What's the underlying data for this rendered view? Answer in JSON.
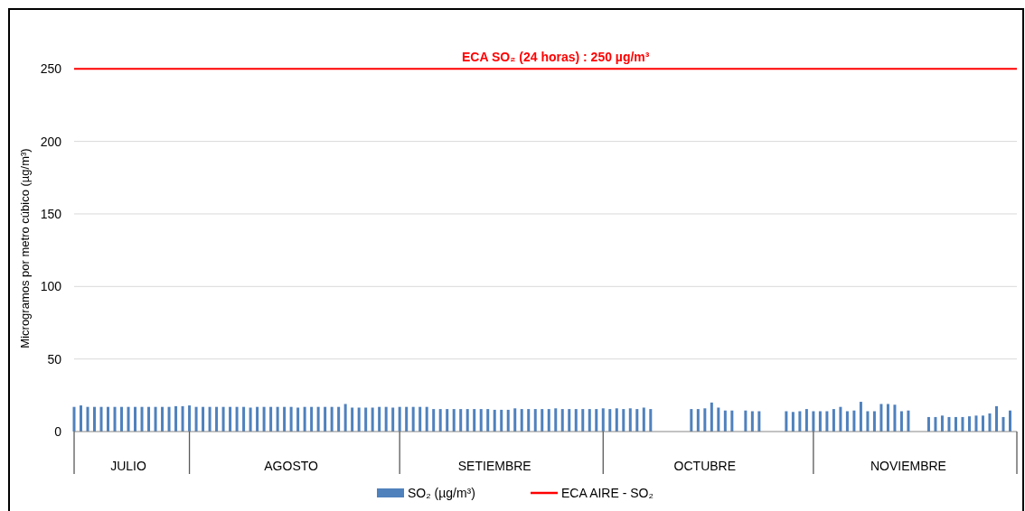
{
  "chart_data": {
    "type": "bar",
    "ylabel": "Microgramos por metro cúbico (µg/m³)",
    "xlim": [
      "--07-15",
      "--12-01"
    ],
    "xticks": [
      {
        "value": "--07-15",
        "label": null
      },
      {
        "value": "--07-23",
        "label": "JULIO"
      },
      {
        "value": "--08-01",
        "label": null
      },
      {
        "value": "--08-16",
        "label": "AGOSTO"
      },
      {
        "value": "--09-01",
        "label": null
      },
      {
        "value": "--09-15",
        "label": "SETIEMBRE"
      },
      {
        "value": "--10-01",
        "label": null
      },
      {
        "value": "--10-16",
        "label": "OCTUBRE"
      },
      {
        "value": "--11-01",
        "label": null
      },
      {
        "value": "--11-15",
        "label": "NOVIEMBRE"
      },
      {
        "value": "--12-01",
        "label": null
      }
    ],
    "ylim": [
      0,
      290
    ],
    "yticks": [
      0,
      50,
      100,
      150,
      200,
      250
    ],
    "grid": "y",
    "legend": "bottom",
    "series": [
      {
        "name": "SO₂ (µg/m³)",
        "color": "#4f81bd",
        "x": [
          "--07-15",
          "--07-16",
          "--07-17",
          "--07-18",
          "--07-19",
          "--07-20",
          "--07-21",
          "--07-22",
          "--07-23",
          "--07-24",
          "--07-25",
          "--07-26",
          "--07-27",
          "--07-28",
          "--07-29",
          "--07-30",
          "--07-31",
          "--08-01",
          "--08-02",
          "--08-03",
          "--08-04",
          "--08-05",
          "--08-06",
          "--08-07",
          "--08-08",
          "--08-09",
          "--08-10",
          "--08-11",
          "--08-12",
          "--08-13",
          "--08-14",
          "--08-15",
          "--08-16",
          "--08-17",
          "--08-18",
          "--08-19",
          "--08-20",
          "--08-21",
          "--08-22",
          "--08-23",
          "--08-24",
          "--08-25",
          "--08-26",
          "--08-27",
          "--08-28",
          "--08-29",
          "--08-30",
          "--08-31",
          "--09-01",
          "--09-02",
          "--09-03",
          "--09-04",
          "--09-05",
          "--09-06",
          "--09-07",
          "--09-08",
          "--09-09",
          "--09-10",
          "--09-11",
          "--09-12",
          "--09-13",
          "--09-14",
          "--09-15",
          "--09-16",
          "--09-17",
          "--09-18",
          "--09-19",
          "--09-20",
          "--09-21",
          "--09-22",
          "--09-23",
          "--09-24",
          "--09-25",
          "--09-26",
          "--09-27",
          "--09-28",
          "--09-29",
          "--09-30",
          "--10-01",
          "--10-02",
          "--10-03",
          "--10-04",
          "--10-05",
          "--10-06",
          "--10-07",
          "--10-08",
          "--10-14",
          "--10-15",
          "--10-16",
          "--10-17",
          "--10-18",
          "--10-19",
          "--10-20",
          "--10-22",
          "--10-23",
          "--10-24",
          "--10-28",
          "--10-29",
          "--10-30",
          "--10-31",
          "--11-01",
          "--11-02",
          "--11-03",
          "--11-04",
          "--11-05",
          "--11-06",
          "--11-07",
          "--11-08",
          "--11-09",
          "--11-10",
          "--11-11",
          "--11-12",
          "--11-13",
          "--11-14",
          "--11-15",
          "--11-18",
          "--11-19",
          "--11-20",
          "--11-21",
          "--11-22",
          "--11-23",
          "--11-24",
          "--11-25",
          "--11-26",
          "--11-27",
          "--11-28",
          "--11-29",
          "--11-30"
        ],
        "values": [
          17,
          18,
          17,
          17,
          17,
          17,
          17,
          17,
          17,
          17,
          17,
          17,
          17,
          17,
          17,
          17.5,
          17.5,
          18,
          17,
          17,
          17,
          17,
          17,
          17,
          17,
          17,
          16.5,
          17,
          17,
          17,
          17,
          17,
          17,
          16.5,
          17,
          17,
          17,
          17,
          17,
          17,
          19,
          16.5,
          16.5,
          16.5,
          16.5,
          17,
          17,
          16.5,
          17,
          17,
          17,
          17,
          17,
          15.5,
          15.5,
          15.5,
          15.5,
          15.5,
          15.5,
          15.5,
          15.5,
          15.5,
          15,
          15,
          15,
          16,
          15.5,
          15.5,
          15.5,
          15.5,
          15.5,
          16,
          15.5,
          15.5,
          15.5,
          15.5,
          15.5,
          15.5,
          16,
          15.5,
          16,
          15.5,
          16,
          15.5,
          16.5,
          15.5,
          15.5,
          15.5,
          16,
          20,
          16.5,
          14.5,
          14.5,
          14.5,
          14,
          14,
          14,
          13.5,
          14,
          15.5,
          14,
          14,
          14,
          15.5,
          17,
          14,
          14.5,
          20.5,
          14,
          14,
          19,
          19,
          18.5,
          14,
          14.5,
          10,
          10,
          11,
          10,
          10,
          10,
          10.5,
          11,
          11,
          12.5,
          17.5,
          10,
          14.5
        ]
      },
      {
        "name": "ECA AIRE - SO₂",
        "color": "#ff0000",
        "type": "line",
        "x": [
          "--07-15",
          "--12-01"
        ],
        "values": [
          250,
          250
        ]
      }
    ],
    "annotations": [
      {
        "text": "ECA SO₂ (24 horas) : 250 µg/m³",
        "x": "--09-24",
        "y": 250
      }
    ]
  }
}
